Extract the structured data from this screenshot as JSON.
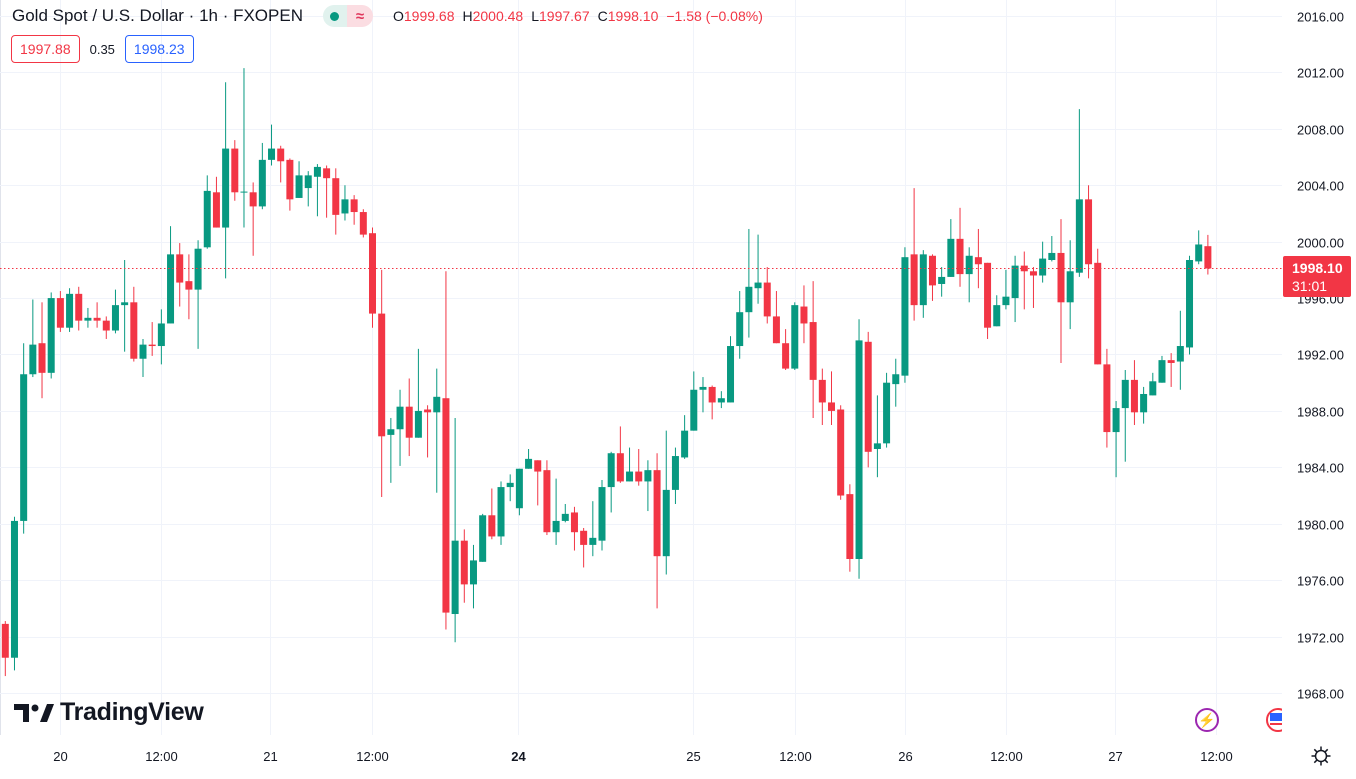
{
  "header": {
    "title": "Gold Spot / U.S. Dollar · 1h · FXOPEN",
    "ohlc": {
      "o_label": "O",
      "o": "1999.68",
      "h_label": "H",
      "h": "2000.48",
      "l_label": "L",
      "l": "1997.67",
      "c_label": "C",
      "c": "1998.10",
      "change": "−1.58 (−0.08%)"
    },
    "pill_icon": "≈"
  },
  "quotes": {
    "bid": "1997.88",
    "spread": "0.35",
    "ask": "1998.23"
  },
  "last_price": {
    "price": "1998.10",
    "countdown": "31:01"
  },
  "logo": {
    "text": "TradingView"
  },
  "icons": [
    "lightning-icon",
    "us-flag-icon",
    "gear-icon"
  ],
  "colors": {
    "up": "#089981",
    "down": "#f23645",
    "grid": "#f0f3fa",
    "ask": "#2962ff",
    "text": "#131722"
  },
  "chart_data": {
    "type": "candlestick",
    "title": "Gold Spot / U.S. Dollar · 1h · FXOPEN",
    "ylim": [
      1966,
      2017.2
    ],
    "y_ticks": [
      "2016.00",
      "2012.00",
      "2008.00",
      "2004.00",
      "2000.00",
      "1996.00",
      "1992.00",
      "1988.00",
      "1984.00",
      "1980.00",
      "1976.00",
      "1972.00",
      "1968.00"
    ],
    "x_labels": [
      {
        "label": "20",
        "index": 6,
        "bold": false
      },
      {
        "label": "12:00",
        "index": 17,
        "bold": false
      },
      {
        "label": "21",
        "index": 28.8,
        "bold": false
      },
      {
        "label": "12:00",
        "index": 39.9,
        "bold": false
      },
      {
        "label": "24",
        "index": 55.8,
        "bold": true
      },
      {
        "label": "25",
        "index": 74.9,
        "bold": false
      },
      {
        "label": "12:00",
        "index": 86,
        "bold": false
      },
      {
        "label": "26",
        "index": 98,
        "bold": false
      },
      {
        "label": "12:00",
        "index": 109,
        "bold": false
      },
      {
        "label": "27",
        "index": 120.9,
        "bold": false
      },
      {
        "label": "12:00",
        "index": 131.9,
        "bold": false
      }
    ],
    "last_price": 1998.1,
    "candles_ohlc": [
      [
        1972.9,
        1973.1,
        1969.2,
        1970.5
      ],
      [
        1970.5,
        1980.5,
        1969.6,
        1980.2
      ],
      [
        1980.2,
        1992.8,
        1979.3,
        1990.6
      ],
      [
        1990.6,
        1995.9,
        1990.4,
        1992.7
      ],
      [
        1992.8,
        1995.7,
        1988.9,
        1990.7
      ],
      [
        1990.7,
        1996.4,
        1990.3,
        1996.0
      ],
      [
        1996.0,
        1996.5,
        1993.6,
        1993.9
      ],
      [
        1993.9,
        1996.7,
        1993.6,
        1996.3
      ],
      [
        1996.3,
        1996.8,
        1993.7,
        1994.4
      ],
      [
        1994.4,
        1995.3,
        1993.9,
        1994.6
      ],
      [
        1994.6,
        1995.7,
        1993.9,
        1994.4
      ],
      [
        1994.4,
        1994.7,
        1993.1,
        1993.7
      ],
      [
        1993.7,
        1996.6,
        1993.5,
        1995.5
      ],
      [
        1995.5,
        1998.7,
        1992.2,
        1995.7
      ],
      [
        1995.7,
        1996.8,
        1991.5,
        1991.7
      ],
      [
        1991.7,
        1993.1,
        1990.4,
        1992.7
      ],
      [
        1992.7,
        1994.3,
        1991.9,
        1992.6
      ],
      [
        1992.6,
        1995.2,
        1991.3,
        1994.2
      ],
      [
        1994.2,
        2001.1,
        1994.2,
        1999.1
      ],
      [
        1999.1,
        1999.9,
        1995.4,
        1997.1
      ],
      [
        1997.2,
        1999.1,
        1994.5,
        1996.6
      ],
      [
        1996.6,
        2000.1,
        1992.4,
        1999.5
      ],
      [
        1999.6,
        2004.7,
        1999.5,
        2003.6
      ],
      [
        2003.5,
        2004.6,
        2001.0,
        2001.0
      ],
      [
        2001.0,
        2011.3,
        1997.4,
        2006.6
      ],
      [
        2006.6,
        2007.2,
        2002.9,
        2003.5
      ],
      [
        2003.5,
        2012.3,
        2001.0,
        2003.55
      ],
      [
        2003.5,
        2004.2,
        1999.0,
        2002.5
      ],
      [
        2002.5,
        2007.0,
        2002.3,
        2005.8
      ],
      [
        2005.8,
        2008.3,
        2005.4,
        2006.6
      ],
      [
        2006.6,
        2006.8,
        2004.2,
        2005.7
      ],
      [
        2005.8,
        2005.9,
        2002.2,
        2003.0
      ],
      [
        2003.1,
        2005.7,
        2003.1,
        2004.7
      ],
      [
        2003.8,
        2005.0,
        2002.5,
        2004.7
      ],
      [
        2004.6,
        2005.5,
        2001.8,
        2005.3
      ],
      [
        2005.2,
        2005.4,
        2001.7,
        2004.5
      ],
      [
        2004.5,
        2005.2,
        2000.5,
        2001.9
      ],
      [
        2002.0,
        2004.0,
        2001.5,
        2003.0
      ],
      [
        2003.0,
        2003.3,
        2001.2,
        2002.1
      ],
      [
        2002.1,
        2002.3,
        2000.3,
        2000.5
      ],
      [
        2000.6,
        2001.0,
        1993.9,
        1994.9
      ],
      [
        1994.9,
        1998.0,
        1981.9,
        1986.2
      ],
      [
        1986.3,
        1987.5,
        1982.9,
        1986.7
      ],
      [
        1986.7,
        1989.5,
        1984.1,
        1988.3
      ],
      [
        1988.3,
        1990.3,
        1984.8,
        1986.1
      ],
      [
        1986.1,
        1992.4,
        1986.1,
        1988.0
      ],
      [
        1988.1,
        1988.4,
        1984.7,
        1987.9
      ],
      [
        1987.9,
        1991.0,
        1982.2,
        1989.0
      ],
      [
        1988.9,
        1997.9,
        1972.5,
        1973.7
      ],
      [
        1973.6,
        1987.5,
        1971.6,
        1978.8
      ],
      [
        1978.8,
        1979.6,
        1974.4,
        1975.7
      ],
      [
        1975.7,
        1978.5,
        1974.0,
        1977.4
      ],
      [
        1977.3,
        1980.7,
        1977.3,
        1980.6
      ],
      [
        1980.6,
        1982.5,
        1978.9,
        1979.1
      ],
      [
        1979.1,
        1983.0,
        1978.5,
        1982.6
      ],
      [
        1982.6,
        1983.5,
        1981.6,
        1982.9
      ],
      [
        1981.1,
        1983.9,
        1980.6,
        1983.9
      ],
      [
        1983.9,
        1985.3,
        1983.9,
        1984.6
      ],
      [
        1984.5,
        1984.5,
        1981.3,
        1983.7
      ],
      [
        1983.8,
        1984.5,
        1979.2,
        1979.4
      ],
      [
        1979.4,
        1983.2,
        1978.5,
        1980.2
      ],
      [
        1980.2,
        1981.4,
        1980.1,
        1980.7
      ],
      [
        1980.8,
        1981.2,
        1978.1,
        1979.4
      ],
      [
        1979.5,
        1979.7,
        1976.9,
        1978.5
      ],
      [
        1978.5,
        1981.6,
        1977.7,
        1979.0
      ],
      [
        1978.8,
        1983.1,
        1978.1,
        1982.6
      ],
      [
        1982.6,
        1985.1,
        1980.8,
        1985.0
      ],
      [
        1985.0,
        1986.9,
        1982.9,
        1983.0
      ],
      [
        1983.0,
        1985.4,
        1983.0,
        1983.7
      ],
      [
        1983.7,
        1985.3,
        1982.7,
        1983.0
      ],
      [
        1983.0,
        1984.5,
        1980.9,
        1983.8
      ],
      [
        1983.8,
        1985.0,
        1974.0,
        1977.7
      ],
      [
        1977.7,
        1986.6,
        1976.4,
        1982.4
      ],
      [
        1982.4,
        1985.4,
        1981.4,
        1984.8
      ],
      [
        1984.7,
        1987.7,
        1984.6,
        1986.6
      ],
      [
        1986.6,
        1990.8,
        1986.6,
        1989.5
      ],
      [
        1989.5,
        1990.4,
        1987.9,
        1989.7
      ],
      [
        1989.7,
        1989.8,
        1987.4,
        1988.6
      ],
      [
        1988.6,
        1989.4,
        1988.2,
        1988.9
      ],
      [
        1988.6,
        1993.3,
        1988.6,
        1992.6
      ],
      [
        1992.6,
        1996.5,
        1991.7,
        1995.0
      ],
      [
        1995.0,
        2000.9,
        1993.2,
        1996.8
      ],
      [
        1996.7,
        2000.5,
        1995.6,
        1997.1
      ],
      [
        1997.1,
        1998.2,
        1994.2,
        1994.7
      ],
      [
        1994.7,
        1996.5,
        1992.8,
        1992.8
      ],
      [
        1992.8,
        1993.8,
        1990.9,
        1991.0
      ],
      [
        1991.0,
        1995.7,
        1990.9,
        1995.5
      ],
      [
        1995.4,
        1996.9,
        1992.8,
        1994.2
      ],
      [
        1994.3,
        1997.2,
        1987.5,
        1990.2
      ],
      [
        1990.2,
        1991.0,
        1987.0,
        1988.6
      ],
      [
        1988.6,
        1990.8,
        1987.0,
        1988.0
      ],
      [
        1988.1,
        1988.4,
        1981.7,
        1982.0
      ],
      [
        1982.1,
        1982.8,
        1976.6,
        1977.5
      ],
      [
        1977.5,
        1994.5,
        1976.1,
        1993.0
      ],
      [
        1992.9,
        1993.6,
        1984.0,
        1985.1
      ],
      [
        1985.3,
        1989.1,
        1983.3,
        1985.7
      ],
      [
        1985.7,
        1990.7,
        1985.4,
        1990.0
      ],
      [
        1989.9,
        1991.7,
        1988.3,
        1990.6
      ],
      [
        1990.5,
        1999.6,
        1990.0,
        1998.9
      ],
      [
        1999.1,
        2003.8,
        1994.4,
        1995.5
      ],
      [
        1995.5,
        1999.4,
        1994.6,
        1999.1
      ],
      [
        1999.0,
        1999.1,
        1995.8,
        1996.9
      ],
      [
        1997.0,
        1998.2,
        1996.1,
        1997.5
      ],
      [
        1997.5,
        2001.6,
        1997.5,
        2000.2
      ],
      [
        2000.2,
        2002.4,
        1996.8,
        1997.7
      ],
      [
        1997.7,
        1999.6,
        1995.7,
        1999.0
      ],
      [
        1998.9,
        2000.9,
        1996.7,
        1998.4
      ],
      [
        1998.5,
        1998.5,
        1993.1,
        1993.9
      ],
      [
        1994.0,
        1996.2,
        1994.0,
        1995.5
      ],
      [
        1995.5,
        1998.0,
        1995.2,
        1996.1
      ],
      [
        1996.0,
        1999.0,
        1994.3,
        1998.3
      ],
      [
        1998.3,
        1999.3,
        1995.2,
        1997.9
      ],
      [
        1997.9,
        1998.2,
        1995.3,
        1997.6
      ],
      [
        1997.6,
        2000.0,
        1997.1,
        1998.8
      ],
      [
        1998.7,
        2000.4,
        1998.6,
        1999.2
      ],
      [
        1999.2,
        2001.6,
        1991.4,
        1995.7
      ],
      [
        1995.7,
        2000.1,
        1993.8,
        1997.9
      ],
      [
        1997.8,
        2009.4,
        1997.5,
        2003.0
      ],
      [
        2003.0,
        2004.0,
        1997.4,
        1998.4
      ],
      [
        1998.5,
        1999.5,
        1991.3,
        1991.3
      ],
      [
        1991.3,
        1992.4,
        1985.4,
        1986.5
      ],
      [
        1986.5,
        1988.7,
        1983.3,
        1988.2
      ],
      [
        1988.2,
        1990.9,
        1984.4,
        1990.2
      ],
      [
        1990.2,
        1991.6,
        1987.0,
        1987.9
      ],
      [
        1987.9,
        1989.7,
        1987.1,
        1989.2
      ],
      [
        1989.1,
        1990.7,
        1989.1,
        1990.1
      ],
      [
        1990.0,
        1991.9,
        1990.0,
        1991.6
      ],
      [
        1991.6,
        1992.1,
        1989.7,
        1991.4
      ],
      [
        1991.5,
        1995.1,
        1989.5,
        1992.6
      ],
      [
        1992.5,
        1999.0,
        1992.0,
        1998.7
      ],
      [
        1998.6,
        2000.8,
        1998.4,
        1999.8
      ],
      [
        1999.68,
        2000.48,
        1997.67,
        1998.1
      ]
    ]
  }
}
